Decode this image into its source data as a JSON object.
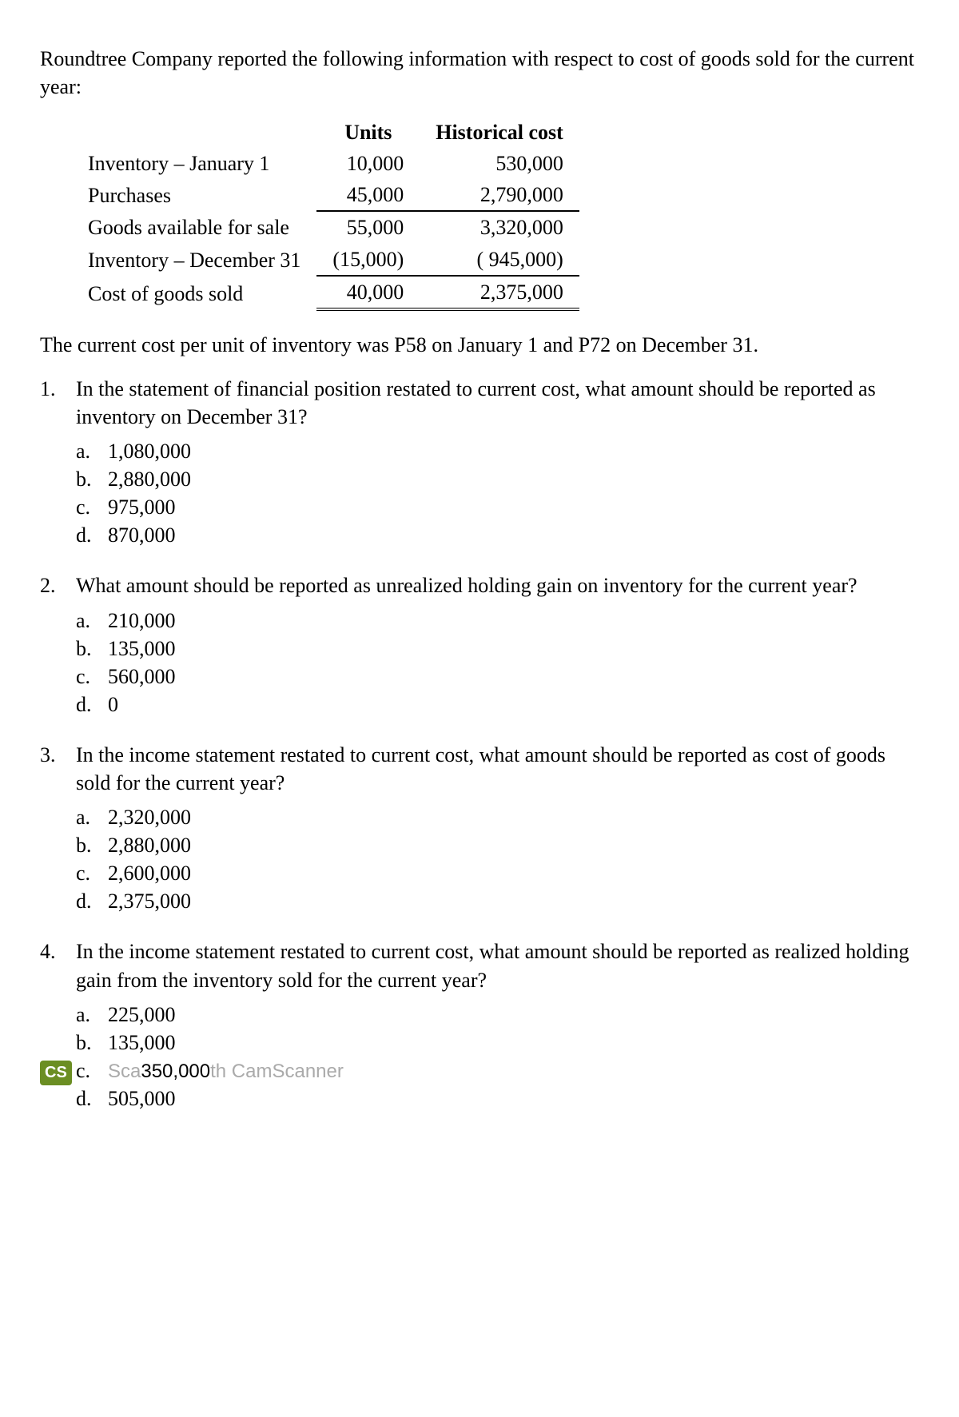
{
  "intro": "Roundtree Company reported the following information with respect to cost of goods sold for the current year:",
  "table": {
    "headers": {
      "units": "Units",
      "hist": "Historical cost"
    },
    "rows": [
      {
        "label": "Inventory – January 1",
        "units": "10,000",
        "hist": "530,000"
      },
      {
        "label": "Purchases",
        "units": "45,000",
        "hist": "2,790,000",
        "underline": true
      },
      {
        "label": "Goods available for sale",
        "units": "55,000",
        "hist": "3,320,000"
      },
      {
        "label": "Inventory – December 31",
        "units": "(15,000)",
        "hist": "( 945,000)",
        "underline": true
      },
      {
        "label": "Cost of goods sold",
        "units": "40,000",
        "hist": "2,375,000",
        "double": true
      }
    ]
  },
  "mid": "The current cost per unit of inventory was P58 on January 1 and P72 on December 31.",
  "questions": [
    {
      "num": "1.",
      "text": "In the statement of financial position restated to current cost, what amount should be reported as inventory on December 31?",
      "options": [
        {
          "l": "a.",
          "v": "1,080,000"
        },
        {
          "l": "b.",
          "v": "2,880,000"
        },
        {
          "l": "c.",
          "v": "   975,000"
        },
        {
          "l": "d.",
          "v": "   870,000"
        }
      ]
    },
    {
      "num": "2.",
      "text": "What amount should be reported as unrealized holding gain on inventory for the current year?",
      "options": [
        {
          "l": "a.",
          "v": "210,000"
        },
        {
          "l": "b.",
          "v": "135,000"
        },
        {
          "l": "c.",
          "v": "560,000"
        },
        {
          "l": "d.",
          "v": "          0"
        }
      ]
    },
    {
      "num": "3.",
      "text": "In the income statement restated to current cost, what amount should be reported as cost of goods sold for the current year?",
      "options": [
        {
          "l": "a.",
          "v": "2,320,000"
        },
        {
          "l": "b.",
          "v": "2,880,000"
        },
        {
          "l": "c.",
          "v": "2,600,000"
        },
        {
          "l": "d.",
          "v": "2,375,000"
        }
      ]
    },
    {
      "num": "4.",
      "text": "In the income statement restated to current cost, what amount should be reported as realized holding gain from the inventory sold for the current year?",
      "options": [
        {
          "l": "a.",
          "v": "225,000"
        },
        {
          "l": "b.",
          "v": "135,000"
        },
        {
          "l": "c.",
          "v": "350,000",
          "watermark": true
        },
        {
          "l": "d.",
          "v": "505,000"
        }
      ]
    }
  ],
  "watermark": {
    "badge": "CS",
    "prefix": "Sca",
    "mid": "350,000",
    "suffix": "th CamScanner"
  }
}
